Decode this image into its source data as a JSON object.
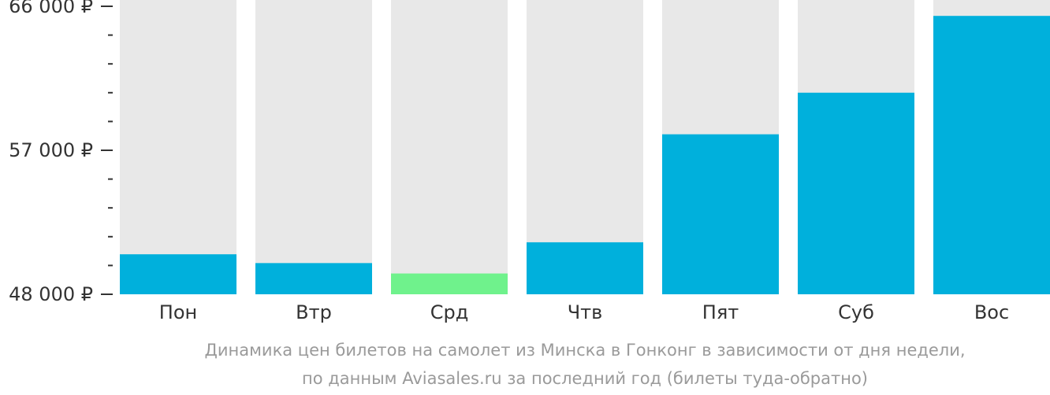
{
  "chart_data": {
    "type": "bar",
    "categories": [
      "Пон",
      "Втр",
      "Срд",
      "Чтв",
      "Пят",
      "Суб",
      "Вос"
    ],
    "values": [
      50500,
      49950,
      49300,
      51250,
      58000,
      60600,
      65400
    ],
    "highlight_index": 2,
    "ylim": [
      48000,
      66000
    ],
    "y_ticks": [
      {
        "value": 48000,
        "label": "48 000 ₽"
      },
      {
        "value": 57000,
        "label": "57 000 ₽"
      },
      {
        "value": 66000,
        "label": "66 000 ₽"
      }
    ],
    "y_minor_step": 1800,
    "caption": [
      "Динамика цен билетов на самолет из Минска в Гонконг в зависимости от дня недели,",
      "по данным Aviasales.ru за последний год (билеты туда-обратно)"
    ],
    "colors": {
      "bar": "#00b0dc",
      "highlight": "#6ff28c",
      "background_bar": "#e8e8e8",
      "axis": "#333333",
      "caption": "#9a9a9a"
    }
  }
}
